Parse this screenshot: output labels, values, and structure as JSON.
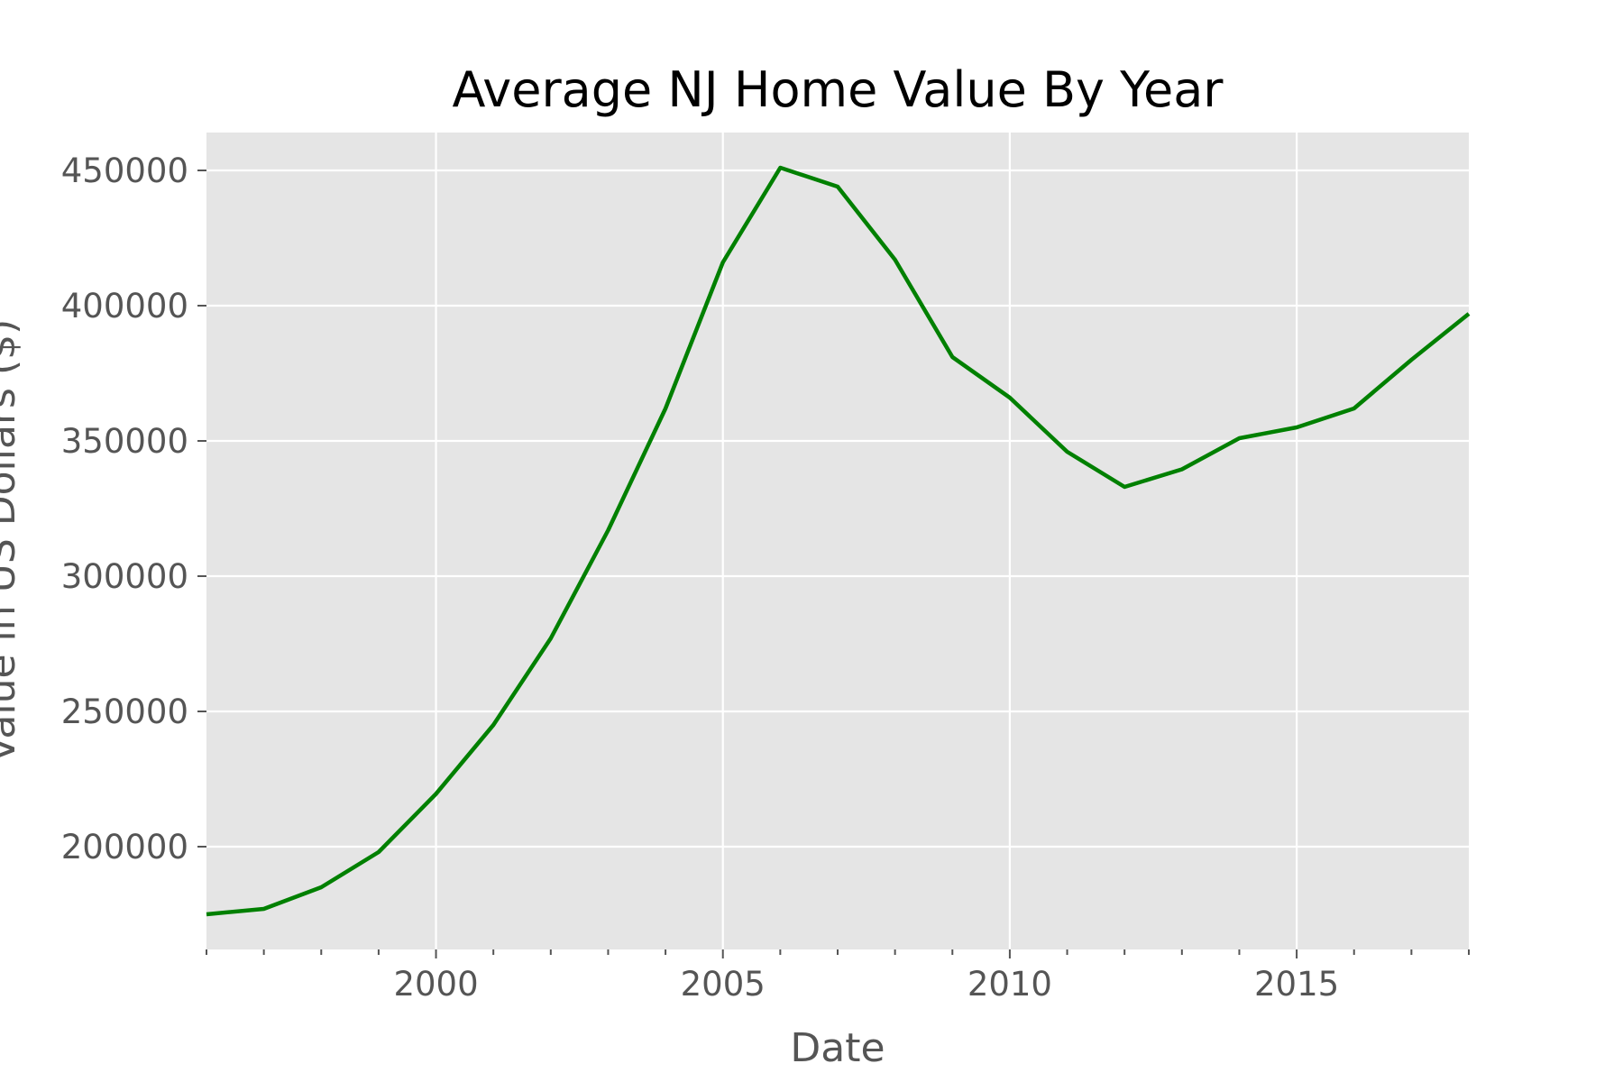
{
  "chart_data": {
    "type": "line",
    "title": "Average NJ Home Value By Year",
    "xlabel": "Date",
    "ylabel": "Value in US Dollars ($)",
    "xlim": [
      1996,
      2018
    ],
    "ylim": [
      162000,
      464000
    ],
    "x_ticks": [
      2000,
      2005,
      2010,
      2015
    ],
    "x_minor_ticks": [
      1996,
      1997,
      1998,
      1999,
      2001,
      2002,
      2003,
      2004,
      2006,
      2007,
      2008,
      2009,
      2011,
      2012,
      2013,
      2014,
      2016,
      2017,
      2018
    ],
    "y_ticks": [
      200000,
      250000,
      300000,
      350000,
      400000,
      450000
    ],
    "grid": true,
    "background": "#e5e5e5",
    "grid_color": "#ffffff",
    "series": [
      {
        "color": "#008000",
        "x": [
          1996,
          1997,
          1998,
          1999,
          2000,
          2001,
          2002,
          2003,
          2004,
          2005,
          2006,
          2007,
          2008,
          2009,
          2010,
          2011,
          2012,
          2013,
          2014,
          2015,
          2016,
          2017,
          2018
        ],
        "y": [
          175000,
          177000,
          185000,
          198000,
          219500,
          245000,
          277000,
          317000,
          362000,
          416000,
          451000,
          444000,
          417000,
          381000,
          366000,
          346000,
          333000,
          339500,
          351000,
          355000,
          362000,
          380000,
          397000
        ]
      }
    ]
  }
}
